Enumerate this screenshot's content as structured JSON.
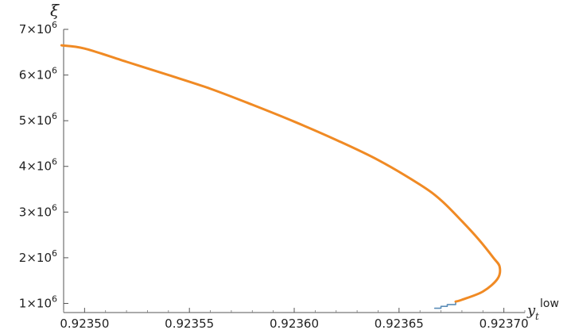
{
  "chart_data": {
    "type": "line",
    "title": "",
    "xlabel": "y",
    "xlabel_sub": "t",
    "xlabel_sup": "low",
    "ylabel": "ξ",
    "xlim": [
      0.92349,
      0.92371
    ],
    "ylim": [
      800000,
      7000000
    ],
    "xticks": [
      {
        "value": 0.9235,
        "label": "0.92350"
      },
      {
        "value": 0.92355,
        "label": "0.92355"
      },
      {
        "value": 0.9236,
        "label": "0.92360"
      },
      {
        "value": 0.92365,
        "label": "0.92365"
      },
      {
        "value": 0.9237,
        "label": "0.92370"
      }
    ],
    "yticks": [
      {
        "value": 1000000,
        "mantissa": "1",
        "exp": "6"
      },
      {
        "value": 2000000,
        "mantissa": "2",
        "exp": "6"
      },
      {
        "value": 3000000,
        "mantissa": "3",
        "exp": "6"
      },
      {
        "value": 4000000,
        "mantissa": "4",
        "exp": "6"
      },
      {
        "value": 5000000,
        "mantissa": "5",
        "exp": "6"
      },
      {
        "value": 6000000,
        "mantissa": "6",
        "exp": "6"
      },
      {
        "value": 7000000,
        "mantissa": "7",
        "exp": "6"
      }
    ],
    "grid": false,
    "legend": "none",
    "series": [
      {
        "color": "#f08a24",
        "x": [
          0.923489,
          0.9235,
          0.92352,
          0.92354,
          0.92356,
          0.92358,
          0.9236,
          0.92362,
          0.92364,
          0.92366,
          0.92367,
          0.92368,
          0.923688,
          0.923695,
          0.923698,
          0.923697,
          0.92369,
          0.92368,
          0.923677
        ],
        "y": [
          6650000,
          6580000,
          6290000,
          6000000,
          5700000,
          5350000,
          4980000,
          4580000,
          4140000,
          3600000,
          3260000,
          2800000,
          2400000,
          2000000,
          1800000,
          1540000,
          1260000,
          1080000,
          1040000
        ]
      },
      {
        "color": "#5b8db8",
        "x": [
          0.923667,
          0.92367,
          0.923673,
          0.923677
        ],
        "y": [
          895000,
          935000,
          975000,
          1010000
        ]
      }
    ]
  }
}
